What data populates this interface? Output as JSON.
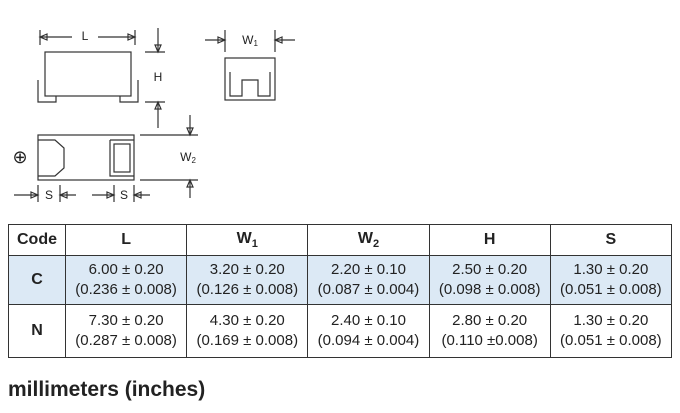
{
  "diagram": {
    "top_length": "L",
    "height": "H",
    "width1": {
      "text": "W",
      "sub": "1"
    },
    "width2": {
      "text": "W",
      "sub": "2"
    },
    "polarity": "⊕",
    "space_left": "S",
    "space_right": "S"
  },
  "table": {
    "header": [
      "Code",
      "L",
      {
        "text": "W",
        "sub": "1"
      },
      {
        "text": "W",
        "sub": "2"
      },
      "H",
      "S"
    ],
    "rows": [
      [
        "C",
        [
          "6.00 ± 0.20",
          "(0.236 ± 0.008)"
        ],
        [
          "3.20 ± 0.20",
          "(0.126 ± 0.008)"
        ],
        [
          "2.20 ± 0.10",
          "(0.087 ± 0.004)"
        ],
        [
          "2.50 ± 0.20",
          "(0.098 ± 0.008)"
        ],
        [
          "1.30 ± 0.20",
          "(0.051 ± 0.008)"
        ]
      ],
      [
        "N",
        [
          "7.30 ± 0.20",
          "(0.287 ± 0.008)"
        ],
        [
          "4.30 ± 0.20",
          "(0.169 ± 0.008)"
        ],
        [
          "2.40 ± 0.10",
          "(0.094 ± 0.004)"
        ],
        [
          "2.80 ± 0.20",
          "(0.110 ±0.008)"
        ],
        [
          "1.30 ± 0.20",
          "(0.051 ± 0.008)"
        ]
      ]
    ]
  },
  "footer": "millimeters (inches)"
}
